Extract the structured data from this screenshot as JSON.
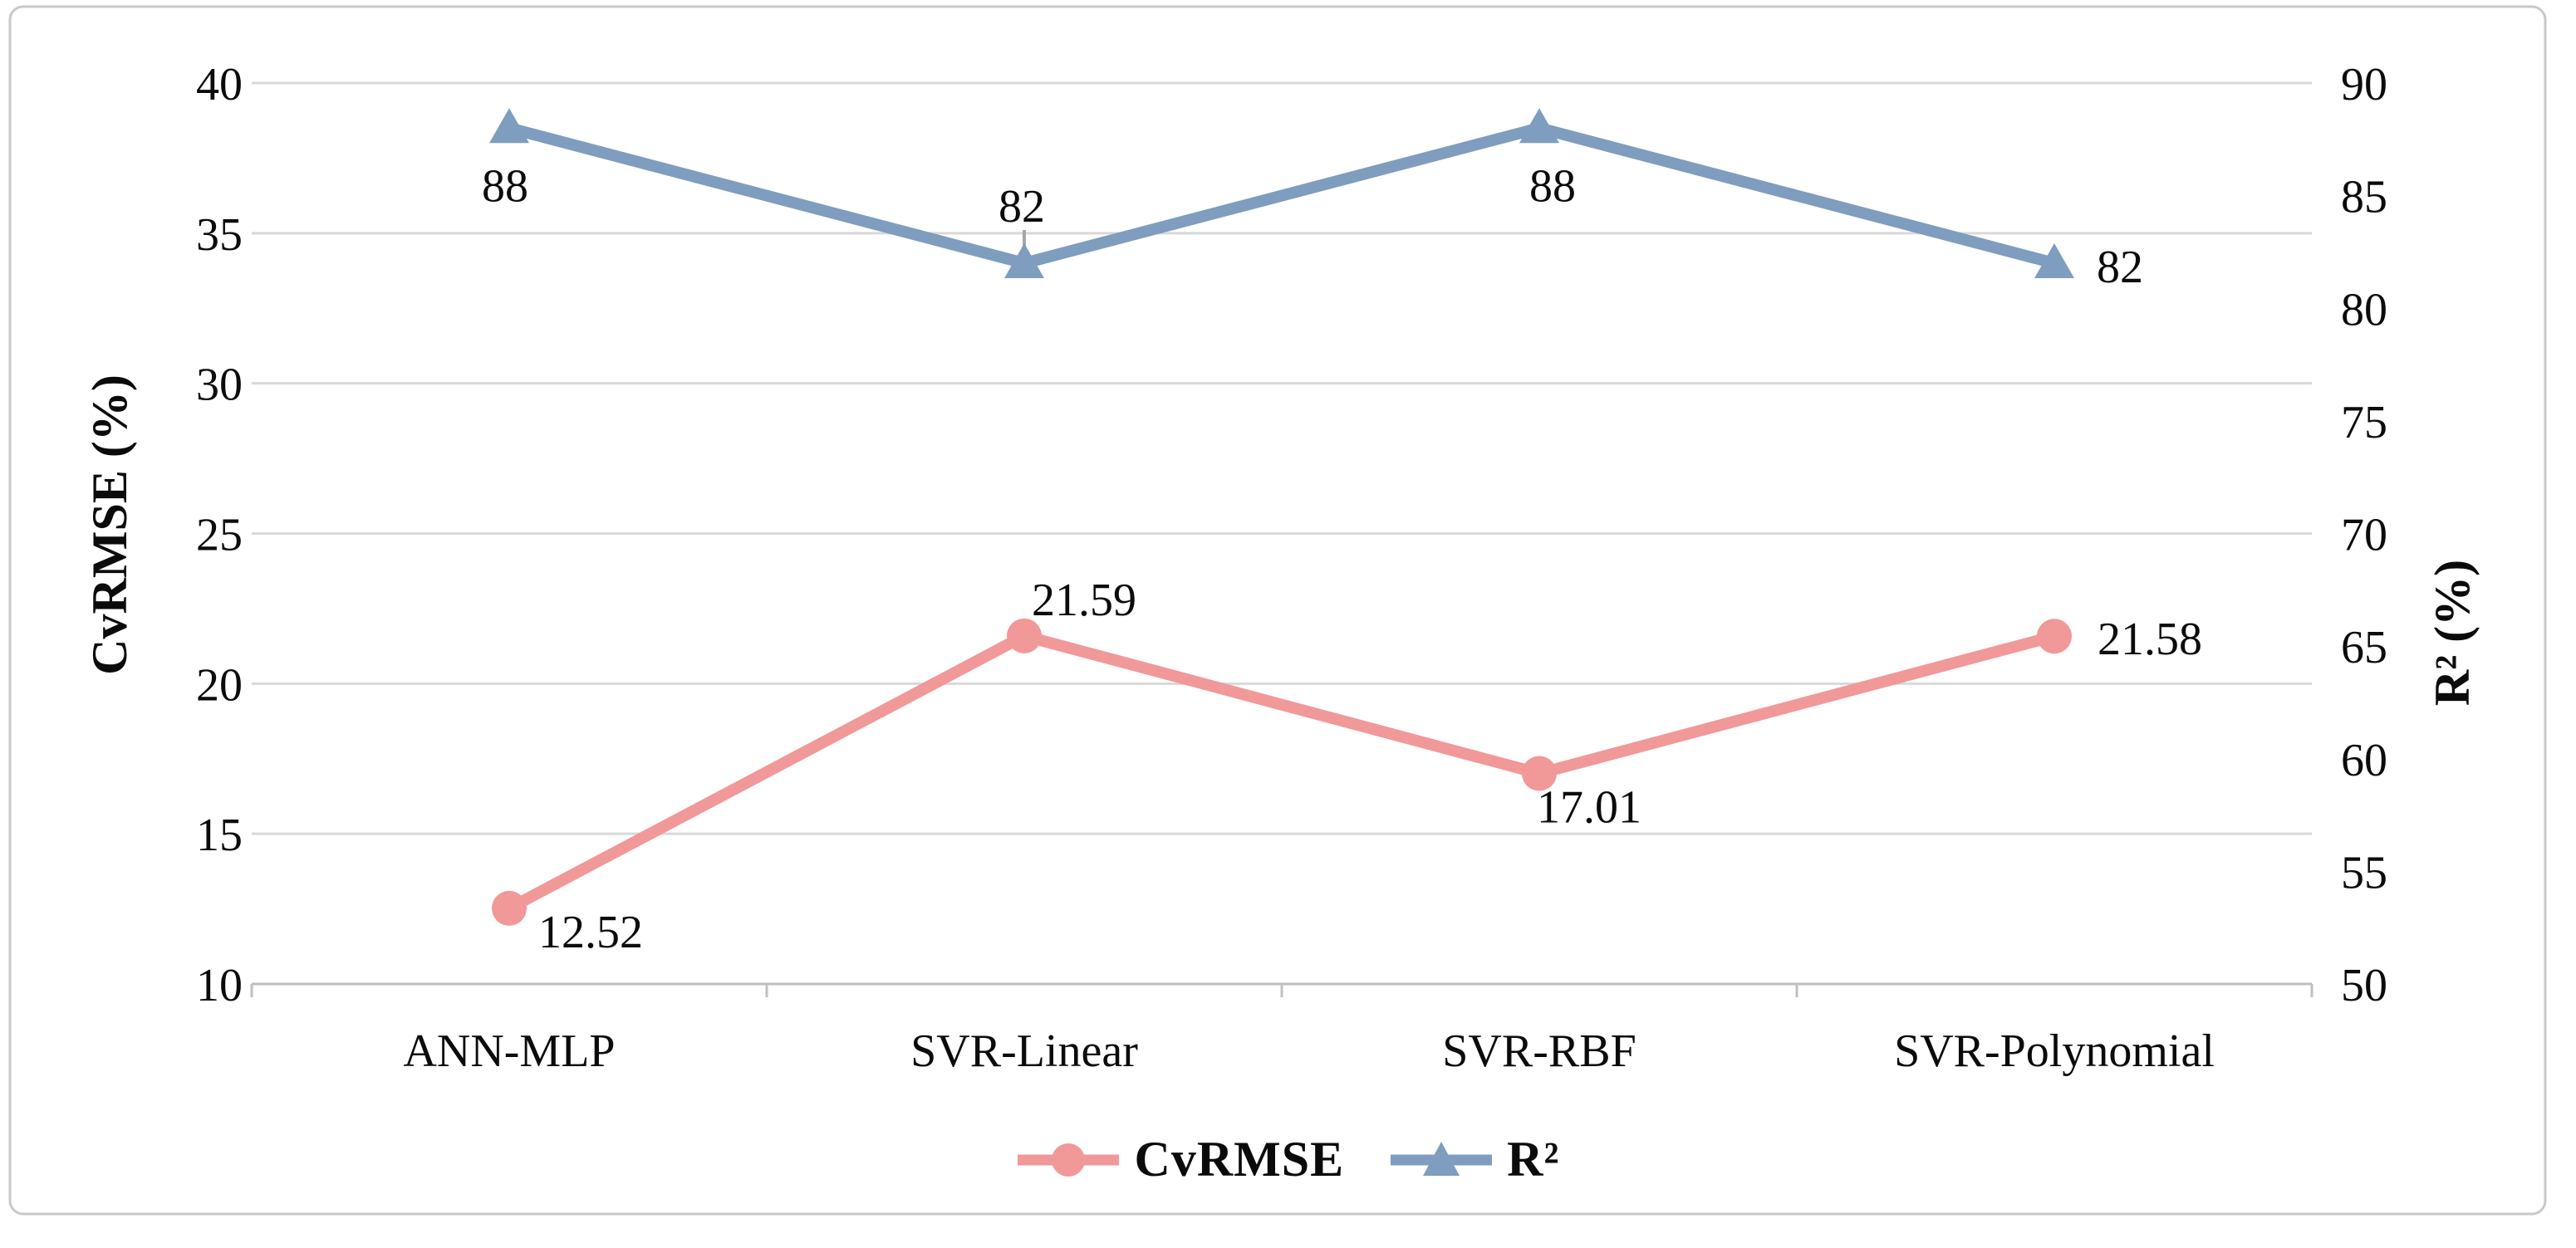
{
  "figure": {
    "background": "#FFFFFF",
    "border_color": "#C9C9C9"
  },
  "colors": {
    "grid": "#D9D9D9",
    "axis": "#BFBFBF",
    "tick_mark": "#C0C0C0",
    "leader": "#A6A6A6",
    "text": "#0B0B0B",
    "cvrmse": "#F19899",
    "r2": "#7E9DBF"
  },
  "chart_data": {
    "type": "line",
    "categories": [
      "ANN-MLP",
      "SVR-Linear",
      "SVR-RBF",
      "SVR-Polynomial"
    ],
    "series": [
      {
        "id": "cvrmse",
        "name": "CvRMSE",
        "axis": "left",
        "color": "#F19899",
        "marker": "circle",
        "values": [
          12.52,
          21.59,
          17.01,
          21.58
        ],
        "data_labels": [
          "12.52",
          "21.59",
          "17.01",
          "21.58"
        ],
        "label_offsets": [
          {
            "dx": 98,
            "dy": 27
          },
          {
            "dx": 72,
            "dy": -45
          },
          {
            "dx": 60,
            "dy": 39
          },
          {
            "dx": 115,
            "dy": 2
          }
        ]
      },
      {
        "id": "r2",
        "name": "R²",
        "axis": "right",
        "color": "#7E9DBF",
        "marker": "triangle",
        "values": [
          88,
          82,
          88,
          82
        ],
        "data_labels": [
          "88",
          "82",
          "88",
          "82"
        ],
        "label_offsets": [
          {
            "dx": -5,
            "dy": 68
          },
          {
            "dx": -3,
            "dy": -70,
            "leader": true
          },
          {
            "dx": 16,
            "dy": 68
          },
          {
            "dx": 79,
            "dy": 3
          }
        ]
      }
    ],
    "left_axis": {
      "title": "CvRMSE (%)",
      "min": 10,
      "max": 40,
      "ticks": [
        10,
        15,
        20,
        25,
        30,
        35,
        40
      ]
    },
    "right_axis": {
      "title": "R² (%)",
      "min": 50,
      "max": 90,
      "ticks": [
        50,
        55,
        60,
        65,
        70,
        75,
        80,
        85,
        90
      ]
    },
    "grid": true,
    "legend_position": "bottom"
  },
  "legend": {
    "items": [
      {
        "label": "CvRMSE",
        "marker": "circle",
        "color": "#F19899"
      },
      {
        "label": "R²",
        "marker": "triangle",
        "color": "#7E9DBF"
      }
    ]
  }
}
